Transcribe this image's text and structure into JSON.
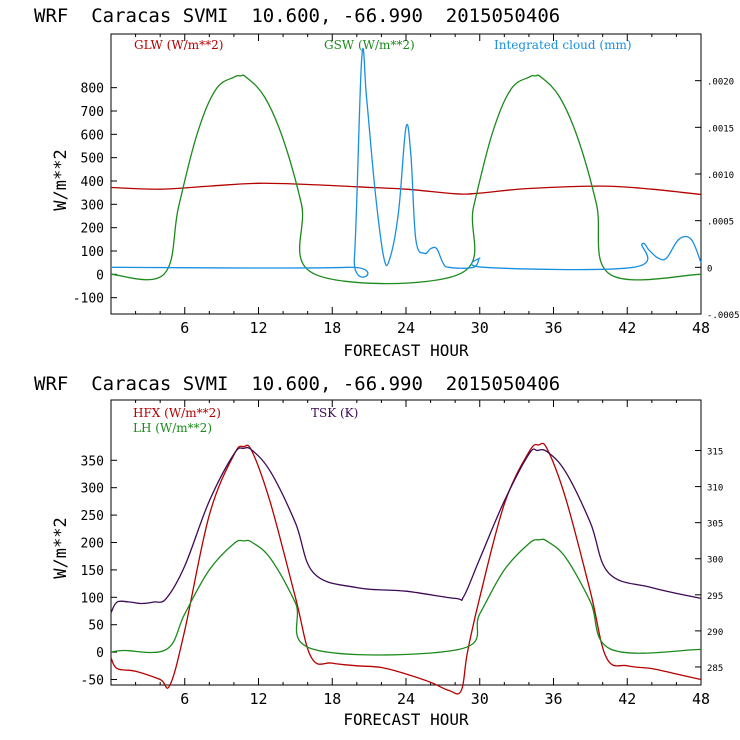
{
  "colors": {
    "red": "#b50000",
    "green": "#1c8a1c",
    "blue": "#1a8fe0",
    "purple": "#3d0a55",
    "axis": "#000000"
  },
  "chart_data": [
    {
      "type": "line",
      "title": "WRF  Caracas SVMI  10.600, -66.990  2015050406",
      "xlabel": "FORECAST HOUR",
      "ylabel": "W/m**2",
      "xlim": [
        0,
        48
      ],
      "ylim": [
        -170,
        1030
      ],
      "x_ticks": [
        6,
        12,
        18,
        24,
        30,
        36,
        42,
        48
      ],
      "y_ticks": [
        -100,
        0,
        100,
        200,
        300,
        400,
        500,
        600,
        700,
        800
      ],
      "y2_label_ticks": [
        {
          "label": "-.0005",
          "v": -0.0005
        },
        {
          "label": "0",
          "v": 0
        },
        {
          "label": ".0005",
          "v": 0.0005
        },
        {
          "label": ".0010",
          "v": 0.001
        },
        {
          "label": ".0015",
          "v": 0.0015
        },
        {
          "label": ".0020",
          "v": 0.002
        }
      ],
      "y2lim": [
        -0.0005,
        0.0025
      ],
      "series": [
        {
          "name": "GLW (W/m**2)",
          "color": "#b50000",
          "axis": "left",
          "x": [
            0,
            4,
            8,
            12,
            16,
            20,
            24,
            28,
            30,
            34,
            40,
            44,
            48
          ],
          "values": [
            372,
            365,
            378,
            390,
            385,
            375,
            365,
            345,
            348,
            368,
            378,
            365,
            342
          ]
        },
        {
          "name": "GSW (W/m**2)",
          "color": "#1c8a1c",
          "axis": "left",
          "x": [
            0,
            4.3,
            5.5,
            7,
            8.5,
            10,
            10.5,
            11,
            12.5,
            14,
            15.5,
            16.6,
            28.3,
            29.5,
            31,
            32.5,
            34,
            34.5,
            35,
            36.5,
            38,
            39.5,
            40.6,
            48
          ],
          "values": [
            0,
            0,
            290,
            600,
            790,
            845,
            850,
            845,
            760,
            580,
            300,
            0,
            0,
            290,
            600,
            790,
            845,
            850,
            845,
            760,
            580,
            300,
            0,
            0
          ]
        },
        {
          "name": "Integrated cloud (mm)",
          "color": "#1a8fe0",
          "axis": "right",
          "x": [
            0,
            19.2,
            19.8,
            20.4,
            20.8,
            21.5,
            22.2,
            22.7,
            23.4,
            24,
            24.4,
            24.8,
            25.5,
            26,
            26.5,
            27,
            27.5,
            29.5,
            30,
            30.4,
            42.5,
            43.2,
            43.8,
            44.5,
            45.2,
            46.2,
            47.2,
            48
          ],
          "values": [
            0,
            0,
            0.0001,
            0.00225,
            0.0018,
            0.0008,
            0.0001,
            0.0001,
            0.0006,
            0.0015,
            0.0012,
            0.0003,
            0.00015,
            0.0002,
            0.0002,
            5e-05,
            0,
            0,
            0.0001,
            0,
            0,
            0.00025,
            0.00018,
            0.0001,
            0.0001,
            0.0003,
            0.0003,
            5e-05
          ]
        }
      ],
      "legend": [
        {
          "label": "GLW (W/m**2)",
          "color": "#b50000"
        },
        {
          "label": "GSW (W/m**2)",
          "color": "#1c8a1c"
        },
        {
          "label": "Integrated cloud (mm)",
          "color": "#1a8fe0"
        }
      ]
    },
    {
      "type": "line",
      "title": "WRF  Caracas SVMI  10.600, -66.990  2015050406",
      "xlabel": "FORECAST HOUR",
      "ylabel": "W/m**2",
      "xlim": [
        0,
        48
      ],
      "ylim": [
        -60,
        460
      ],
      "x_ticks": [
        6,
        12,
        18,
        24,
        30,
        36,
        42,
        48
      ],
      "y_ticks": [
        -50,
        0,
        50,
        100,
        150,
        200,
        250,
        300,
        350
      ],
      "y2_ticks": [
        285,
        290,
        295,
        300,
        305,
        310,
        315
      ],
      "y2lim": [
        282.5,
        322
      ],
      "series": [
        {
          "name": "HFX (W/m**2)",
          "color": "#b50000",
          "axis": "left",
          "x": [
            0,
            0.5,
            2,
            4,
            4.8,
            6,
            8,
            10,
            10.8,
            11.5,
            13,
            15,
            16.3,
            18,
            20,
            22,
            24,
            26,
            27.5,
            28.5,
            29,
            30,
            32,
            34,
            34.8,
            35.5,
            37,
            39,
            40.3,
            42,
            44,
            46,
            48
          ],
          "values": [
            -10,
            -30,
            -35,
            -50,
            -60,
            40,
            250,
            360,
            375,
            365,
            270,
            100,
            -10,
            -20,
            -25,
            -28,
            -40,
            -55,
            -70,
            -70,
            0,
            100,
            270,
            365,
            378,
            370,
            280,
            110,
            -10,
            -25,
            -30,
            -40,
            -50
          ]
        },
        {
          "name": "LH (W/m**2)",
          "color": "#1c8a1c",
          "axis": "left",
          "x": [
            0,
            1,
            4.5,
            6,
            8,
            10,
            10.8,
            11.5,
            13,
            15,
            16.5,
            28.3,
            30,
            32,
            34,
            34.8,
            35.5,
            37,
            39,
            40.7,
            48
          ],
          "values": [
            0,
            3,
            5,
            70,
            150,
            198,
            203,
            200,
            170,
            90,
            5,
            5,
            70,
            150,
            198,
            205,
            202,
            172,
            92,
            5,
            5
          ]
        },
        {
          "name": "TSK (K)",
          "color": "#3d0a55",
          "axis": "right",
          "x": [
            0,
            0.5,
            1.5,
            2.5,
            3.5,
            4.5,
            6,
            8,
            10,
            10.8,
            11.5,
            13,
            15,
            16.5,
            20,
            24,
            28,
            28.7,
            30,
            32,
            34,
            34.7,
            35.5,
            37,
            39,
            40.5,
            44,
            48
          ],
          "values": [
            292.5,
            294,
            294,
            293.8,
            294,
            294.5,
            299,
            308,
            314.5,
            315.3,
            315,
            312,
            305,
            298,
            296,
            295.5,
            294.5,
            294.8,
            300,
            308,
            314.5,
            315,
            314.8,
            312,
            305,
            298,
            296,
            294.5
          ]
        }
      ],
      "legend": [
        {
          "label": "HFX (W/m**2)",
          "color": "#b50000"
        },
        {
          "label": "LH (W/m**2)",
          "color": "#1c8a1c"
        },
        {
          "label": "TSK (K)",
          "color": "#3d0a55"
        }
      ]
    }
  ]
}
